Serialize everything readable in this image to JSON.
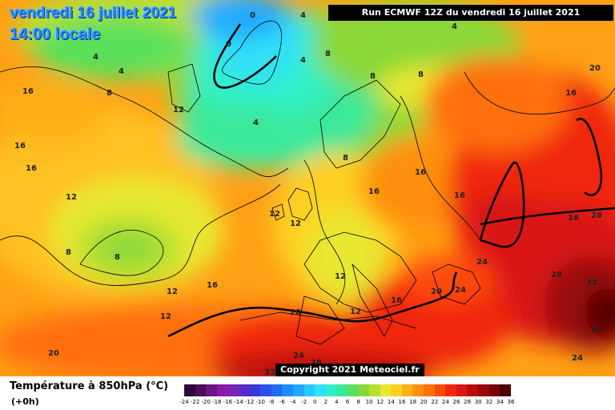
{
  "header": {
    "date": "vendredi 16 juillet 2021",
    "time": "14:00 locale",
    "run": "Run ECMWF 12Z du vendredi 16 juillet 2021"
  },
  "copyright": "Copyright 2021 Meteociel.fr",
  "legend": {
    "title": "Température à 850hPa (°C)",
    "subtitle": "(+0h)",
    "ticks": [
      "-24",
      "-22",
      "-20",
      "-18",
      "-16",
      "-14",
      "-12",
      "-10",
      "-8",
      "-6",
      "-4",
      "-2",
      "0",
      "2",
      "4",
      "6",
      "8",
      "10",
      "12",
      "14",
      "16",
      "18",
      "20",
      "22",
      "24",
      "26",
      "28",
      "30",
      "32",
      "34",
      "36"
    ],
    "colors": [
      "#2b0a3a",
      "#4a0f5a",
      "#6a1480",
      "#8a1aa5",
      "#7a20b8",
      "#5a2bc8",
      "#3a38d8",
      "#2a50e8",
      "#1e6cf5",
      "#1e8cff",
      "#20aaff",
      "#28c8ff",
      "#30e0f5",
      "#30f0c8",
      "#3ae89a",
      "#5ae05a",
      "#8ad838",
      "#b8e030",
      "#e8e830",
      "#ffd020",
      "#ffb018",
      "#ff9010",
      "#ff7008",
      "#ff4a08",
      "#f02810",
      "#d81818",
      "#b80c0c",
      "#980808",
      "#780404",
      "#500202"
    ]
  },
  "map_labels": [
    {
      "text": "0"
    },
    {
      "text": "0"
    },
    {
      "text": "4"
    },
    {
      "text": "4"
    },
    {
      "text": "4"
    },
    {
      "text": "4"
    },
    {
      "text": "4"
    },
    {
      "text": "4"
    },
    {
      "text": "8"
    },
    {
      "text": "8"
    },
    {
      "text": "8"
    },
    {
      "text": "8"
    },
    {
      "text": "8"
    },
    {
      "text": "8"
    },
    {
      "text": "8"
    },
    {
      "text": "12"
    },
    {
      "text": "12"
    },
    {
      "text": "12"
    },
    {
      "text": "12"
    },
    {
      "text": "12"
    },
    {
      "text": "12"
    },
    {
      "text": "12"
    },
    {
      "text": "12"
    },
    {
      "text": "16"
    },
    {
      "text": "16"
    },
    {
      "text": "16"
    },
    {
      "text": "16"
    },
    {
      "text": "16"
    },
    {
      "text": "16"
    },
    {
      "text": "16"
    },
    {
      "text": "16"
    },
    {
      "text": "16"
    },
    {
      "text": "16"
    },
    {
      "text": "20"
    },
    {
      "text": "20"
    },
    {
      "text": "20"
    },
    {
      "text": "20"
    },
    {
      "text": "24"
    },
    {
      "text": "24"
    },
    {
      "text": "24"
    },
    {
      "text": "24"
    },
    {
      "text": "28"
    },
    {
      "text": "28"
    },
    {
      "text": "28"
    },
    {
      "text": "32"
    },
    {
      "text": "32"
    },
    {
      "text": "32"
    }
  ]
}
